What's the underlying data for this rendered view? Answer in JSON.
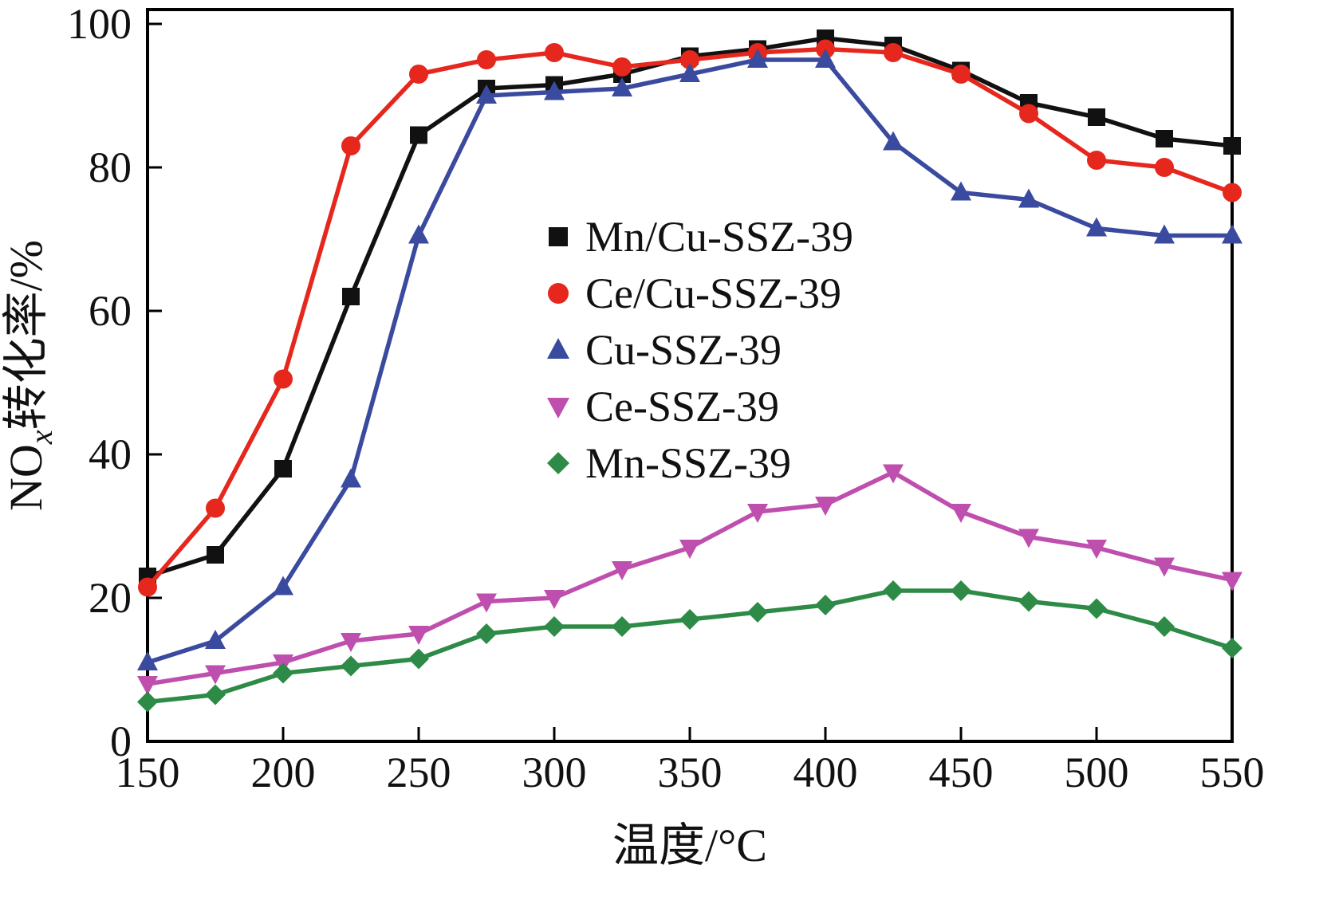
{
  "chart_data": {
    "type": "line",
    "title": "",
    "xlabel": "温度/°C",
    "ylabel_prefix": "NO",
    "ylabel_sub": "x",
    "ylabel_suffix": "转化率/%",
    "xlim": [
      150,
      550
    ],
    "ylim": [
      0,
      100
    ],
    "x_ticks": [
      150,
      200,
      250,
      300,
      350,
      400,
      450,
      500,
      550
    ],
    "y_ticks": [
      0,
      20,
      40,
      60,
      80,
      100
    ],
    "grid": false,
    "legend_position": "center",
    "x": [
      150,
      175,
      200,
      225,
      250,
      275,
      300,
      325,
      350,
      375,
      400,
      425,
      450,
      475,
      500,
      525,
      550
    ],
    "series": [
      {
        "name": "Mn/Cu-SSZ-39",
        "color": "#111111",
        "marker": "square",
        "values": [
          23,
          26,
          38,
          62,
          84.5,
          91,
          91.5,
          93,
          95.5,
          96.5,
          98,
          97,
          93.5,
          89,
          87,
          84,
          83
        ]
      },
      {
        "name": "Ce/Cu-SSZ-39",
        "color": "#e5271d",
        "marker": "circle",
        "values": [
          21.5,
          32.5,
          50.5,
          83,
          93,
          95,
          96,
          94,
          95,
          96,
          96.5,
          96,
          93,
          87.5,
          81,
          80,
          76.5
        ]
      },
      {
        "name": "Cu-SSZ-39",
        "color": "#3a4a9f",
        "marker": "triangle-up",
        "values": [
          11,
          14,
          21.5,
          36.5,
          70.5,
          90,
          90.5,
          91,
          93,
          95,
          95,
          83.5,
          76.5,
          75.5,
          71.5,
          70.5,
          70.5
        ]
      },
      {
        "name": "Ce-SSZ-39",
        "color": "#bf4fae",
        "marker": "triangle-down",
        "values": [
          8,
          9.5,
          11,
          14,
          15,
          19.5,
          20,
          24,
          27,
          32,
          33,
          37.5,
          32,
          28.5,
          27,
          24.5,
          22.5
        ]
      },
      {
        "name": "Mn-SSZ-39",
        "color": "#2e8b47",
        "marker": "diamond",
        "values": [
          5.5,
          6.5,
          9.5,
          10.5,
          11.5,
          15,
          16,
          16,
          17,
          18,
          19,
          21,
          21,
          19.5,
          18.5,
          16,
          13
        ]
      }
    ]
  }
}
